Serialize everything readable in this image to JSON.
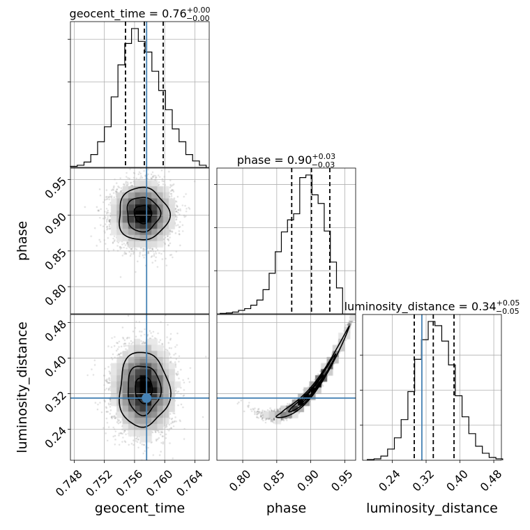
{
  "chart_data": {
    "type": "corner",
    "parameters": [
      "geocent_time",
      "phase",
      "luminosity_distance"
    ],
    "truth_color": "#4682b4",
    "grid": true,
    "axes": {
      "geocent_time": {
        "label": "geocent_time",
        "range": [
          0.7475,
          0.7659
        ],
        "ticks": [
          0.748,
          0.752,
          0.756,
          0.76,
          0.764
        ],
        "tick_labels": [
          "0.748",
          "0.752",
          "0.756",
          "0.760",
          "0.764"
        ],
        "truth": 0.7576
      },
      "phase": {
        "label": "phase",
        "range": [
          0.762,
          0.966
        ],
        "ticks": [
          0.8,
          0.85,
          0.9,
          0.95
        ],
        "tick_labels": [
          "0.80",
          "0.85",
          "0.90",
          "0.95"
        ],
        "truth": null
      },
      "luminosity_distance": {
        "label": "luminosity_distance",
        "range": [
          0.17,
          0.498
        ],
        "ticks": [
          0.24,
          0.32,
          0.4,
          0.48
        ],
        "tick_labels": [
          "0.24",
          "0.32",
          "0.40",
          "0.48"
        ],
        "truth": 0.31
      }
    },
    "diagonal": [
      {
        "param": "geocent_time",
        "title_main": "geocent_time = 0.76",
        "title_sup": "+0.00",
        "title_sub": "−0.00",
        "quantiles": [
          0.7548,
          0.7573,
          0.7598
        ],
        "bin_edges": [
          0.7475,
          0.7484,
          0.7493,
          0.7502,
          0.7511,
          0.752,
          0.7529,
          0.7538,
          0.7547,
          0.7556,
          0.7565,
          0.7574,
          0.7583,
          0.7592,
          0.7601,
          0.761,
          0.7619,
          0.7628,
          0.7637,
          0.7646,
          0.7655
        ],
        "counts": [
          0.5,
          1.0,
          2.5,
          6,
          12,
          19,
          33,
          48,
          58,
          65,
          59,
          54,
          45,
          36,
          27,
          18,
          12,
          6,
          3,
          1
        ],
        "count_ticks": [
          20,
          40,
          60
        ]
      },
      {
        "param": "phase",
        "title_main": "phase = 0.90",
        "title_sup": "+0.03",
        "title_sub": "−0.03",
        "quantiles": [
          0.872,
          0.901,
          0.928
        ],
        "bin_edges": [
          0.7668,
          0.7758,
          0.7848,
          0.7938,
          0.8028,
          0.8118,
          0.8208,
          0.8298,
          0.8388,
          0.8478,
          0.8568,
          0.8658,
          0.8748,
          0.8838,
          0.8928,
          0.9018,
          0.9108,
          0.9198,
          0.9288,
          0.9378,
          0.9468
        ],
        "counts": [
          0.5,
          1,
          2,
          4,
          6,
          10,
          16,
          28,
          47,
          72,
          95,
          109,
          116,
          158,
          161,
          138,
          128,
          96,
          60,
          30
        ],
        "count_ticks": [
          50,
          100,
          150
        ]
      },
      {
        "param": "luminosity_distance",
        "title_main": "luminosity_distance = 0.34",
        "title_sup": "+0.05",
        "title_sub": "−0.05",
        "quantiles": [
          0.292,
          0.337,
          0.386
        ],
        "bin_edges": [
          0.181,
          0.197,
          0.213,
          0.229,
          0.245,
          0.261,
          0.277,
          0.293,
          0.309,
          0.325,
          0.341,
          0.357,
          0.373,
          0.389,
          0.405,
          0.421,
          0.437,
          0.453,
          0.469,
          0.485,
          0.501
        ],
        "counts": [
          0.5,
          1,
          3,
          8,
          16,
          29,
          49,
          72,
          86,
          99,
          96,
          85,
          68,
          46,
          31,
          19,
          10,
          5,
          2,
          1
        ],
        "count_ticks": [
          25,
          50,
          75
        ]
      }
    ],
    "joint": [
      {
        "x": "geocent_time",
        "y": "phase",
        "center": [
          0.7571,
          0.9015
        ],
        "spread": [
          0.0019,
          0.021
        ],
        "correlation": 0.0,
        "truth_x": 0.7576,
        "truth_y": null
      },
      {
        "x": "geocent_time",
        "y": "luminosity_distance",
        "center": [
          0.7572,
          0.329
        ],
        "spread": [
          0.0019,
          0.048
        ],
        "correlation": 0.0,
        "truth_x": 0.7576,
        "truth_y": 0.31
      },
      {
        "x": "phase",
        "y": "luminosity_distance",
        "center": [
          0.901,
          0.338
        ],
        "spread": [
          0.03,
          0.055
        ],
        "correlation": 0.985,
        "truth_x": null,
        "truth_y": 0.31
      }
    ]
  }
}
